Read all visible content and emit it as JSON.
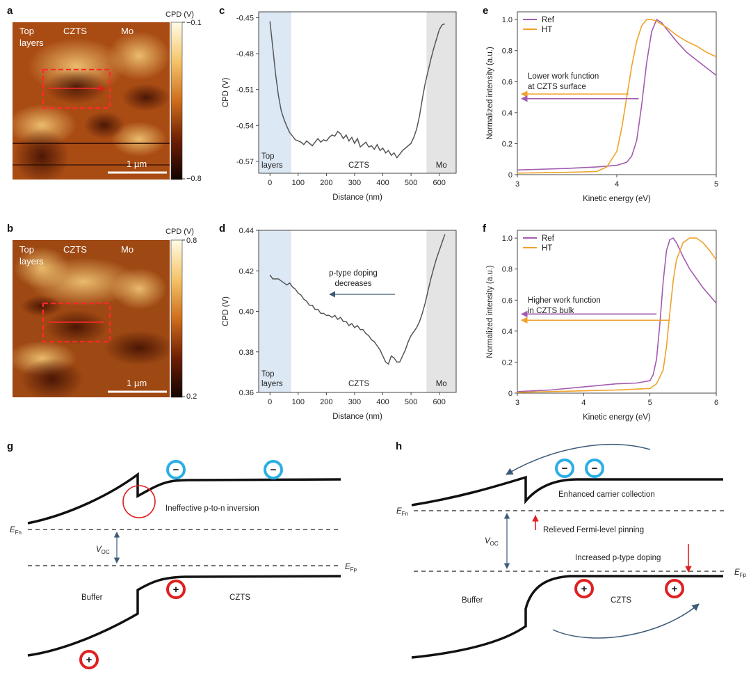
{
  "colors": {
    "ref": "#a25bb0",
    "ht": "#f0a22a",
    "top_shade": "#dce8f4",
    "mo_shade": "#e4e4e4",
    "red": "#e02020",
    "blue": "#2aaee6",
    "navy": "#3c5a78"
  },
  "panels": {
    "a": {
      "letter": "a",
      "labels": {
        "top": "Top",
        "layers": "layers",
        "czts": "CZTS",
        "mo": "Mo",
        "scale": "1 µm"
      },
      "colorbar": {
        "title": "CPD (V)",
        "max": "−0.1",
        "min": "−0.8"
      }
    },
    "b": {
      "letter": "b",
      "labels": {
        "top": "Top",
        "layers": "layers",
        "czts": "CZTS",
        "mo": "Mo",
        "scale": "1 µm"
      },
      "colorbar": {
        "title": "CPD (V)",
        "max": "0.8",
        "min": "0.2"
      }
    },
    "g": {
      "letter": "g",
      "efn_E": "E",
      "efn_sub": "Fn",
      "efp_E": "E",
      "efp_sub": "Fp",
      "voc_V": "V",
      "voc_sub": "OC",
      "buffer": "Buffer",
      "czts": "CZTS",
      "annotation": "Ineffective p-to-n inversion",
      "minus": "−",
      "plus": "+"
    },
    "h": {
      "letter": "h",
      "efn_E": "E",
      "efn_sub": "Fn",
      "efp_E": "E",
      "efp_sub": "Fp",
      "voc_V": "V",
      "voc_sub": "OC",
      "buffer": "Buffer",
      "czts": "CZTS",
      "ann1": "Enhanced carrier collection",
      "ann2": "Relieved Fermi-level pinning",
      "ann3": "Increased p-type doping",
      "minus": "−",
      "plus": "+"
    }
  },
  "chart_data": [
    {
      "panel": "c",
      "type": "line",
      "title": "",
      "xlabel": "Distance (nm)",
      "ylabel": "CPD (V)",
      "xlim": [
        -40,
        660
      ],
      "ylim": [
        -0.58,
        -0.445
      ],
      "xticks": [
        0,
        100,
        200,
        300,
        400,
        500,
        600
      ],
      "yticks": [
        -0.45,
        -0.48,
        -0.51,
        -0.54,
        -0.57
      ],
      "ytick_labels": [
        "-0.45",
        "-0.48",
        "-0.51",
        "-0.54",
        "-0.57"
      ],
      "regions": [
        {
          "label": "Top",
          "label2": "layers",
          "x0": -40,
          "x1": 75,
          "kind": "top"
        },
        {
          "label": "CZTS",
          "label2": "",
          "x0": 75,
          "x1": 555,
          "kind": "none"
        },
        {
          "label": "Mo",
          "label2": "",
          "x0": 555,
          "x1": 660,
          "kind": "mo"
        }
      ],
      "x": [
        0,
        10,
        20,
        30,
        40,
        50,
        60,
        70,
        80,
        90,
        100,
        110,
        120,
        130,
        140,
        150,
        160,
        170,
        180,
        190,
        200,
        210,
        220,
        230,
        240,
        250,
        260,
        270,
        280,
        290,
        300,
        310,
        320,
        330,
        340,
        350,
        360,
        370,
        380,
        390,
        400,
        410,
        420,
        430,
        440,
        450,
        460,
        470,
        480,
        490,
        500,
        510,
        520,
        530,
        540,
        550,
        560,
        570,
        580,
        590,
        600,
        610,
        620
      ],
      "series": [
        {
          "name": "CPD",
          "values": [
            -0.453,
            -0.475,
            -0.497,
            -0.515,
            -0.528,
            -0.535,
            -0.541,
            -0.546,
            -0.549,
            -0.552,
            -0.553,
            -0.554,
            -0.556,
            -0.553,
            -0.555,
            -0.557,
            -0.554,
            -0.551,
            -0.554,
            -0.552,
            -0.553,
            -0.55,
            -0.548,
            -0.549,
            -0.545,
            -0.547,
            -0.551,
            -0.548,
            -0.553,
            -0.55,
            -0.555,
            -0.551,
            -0.558,
            -0.556,
            -0.554,
            -0.558,
            -0.557,
            -0.56,
            -0.556,
            -0.561,
            -0.559,
            -0.563,
            -0.561,
            -0.565,
            -0.563,
            -0.567,
            -0.564,
            -0.561,
            -0.559,
            -0.557,
            -0.555,
            -0.55,
            -0.543,
            -0.532,
            -0.518,
            -0.505,
            -0.495,
            -0.485,
            -0.476,
            -0.468,
            -0.46,
            -0.456,
            -0.455
          ]
        }
      ]
    },
    {
      "panel": "d",
      "type": "line",
      "title": "",
      "xlabel": "Distance (nm)",
      "ylabel": "CPD (V)",
      "xlim": [
        -40,
        660
      ],
      "ylim": [
        0.36,
        0.44
      ],
      "xticks": [
        0,
        100,
        200,
        300,
        400,
        500,
        600
      ],
      "yticks": [
        0.36,
        0.38,
        0.4,
        0.42,
        0.44
      ],
      "ytick_labels": [
        "0.36",
        "0.38",
        "0.40",
        "0.42",
        "0.44"
      ],
      "regions": [
        {
          "label": "Top",
          "label2": "layers",
          "x0": -40,
          "x1": 75,
          "kind": "top"
        },
        {
          "label": "CZTS",
          "label2": "",
          "x0": 75,
          "x1": 555,
          "kind": "none"
        },
        {
          "label": "Mo",
          "label2": "",
          "x0": 555,
          "x1": 660,
          "kind": "mo"
        }
      ],
      "annotation": {
        "line1": "p-type doping",
        "line2": "decreases"
      },
      "x": [
        0,
        10,
        20,
        30,
        40,
        50,
        60,
        70,
        80,
        90,
        100,
        110,
        120,
        130,
        140,
        150,
        160,
        170,
        180,
        190,
        200,
        210,
        220,
        230,
        240,
        250,
        260,
        270,
        280,
        290,
        300,
        310,
        320,
        330,
        340,
        350,
        360,
        370,
        380,
        390,
        400,
        410,
        420,
        430,
        440,
        450,
        460,
        470,
        480,
        490,
        500,
        510,
        520,
        530,
        540,
        550,
        560,
        570,
        580,
        590,
        600,
        610,
        620
      ],
      "series": [
        {
          "name": "CPD",
          "values": [
            0.418,
            0.416,
            0.416,
            0.416,
            0.415,
            0.414,
            0.413,
            0.414,
            0.412,
            0.411,
            0.409,
            0.408,
            0.406,
            0.405,
            0.403,
            0.403,
            0.401,
            0.401,
            0.399,
            0.399,
            0.398,
            0.398,
            0.397,
            0.398,
            0.396,
            0.397,
            0.395,
            0.395,
            0.393,
            0.394,
            0.392,
            0.393,
            0.391,
            0.391,
            0.389,
            0.388,
            0.386,
            0.385,
            0.383,
            0.381,
            0.378,
            0.375,
            0.374,
            0.378,
            0.377,
            0.375,
            0.375,
            0.378,
            0.381,
            0.385,
            0.388,
            0.39,
            0.392,
            0.395,
            0.399,
            0.404,
            0.41,
            0.416,
            0.421,
            0.426,
            0.43,
            0.434,
            0.438
          ]
        }
      ]
    },
    {
      "panel": "e",
      "type": "line",
      "title": "",
      "xlabel": "Kinetic energy (eV)",
      "ylabel": "Normalized intensity (a.u.)",
      "xlim": [
        3,
        5
      ],
      "ylim": [
        0,
        1.05
      ],
      "xticks": [
        3,
        4,
        5
      ],
      "yticks": [
        0,
        0.2,
        0.4,
        0.6,
        0.8,
        1.0
      ],
      "ytick_labels": [
        "0",
        "0.2",
        "0.4",
        "0.6",
        "0.8",
        "1.0"
      ],
      "legend": "top-left",
      "annotation": {
        "line1": "Lower work function",
        "line2": "at CZTS surface",
        "arrow_ht_from": 4.12,
        "arrow_ref_from": 4.22,
        "arrow_ht_y": 0.52,
        "arrow_ref_y": 0.49
      },
      "series": [
        {
          "name": "Ref",
          "color_key": "ref",
          "x": [
            3.0,
            3.5,
            3.8,
            4.0,
            4.1,
            4.15,
            4.2,
            4.25,
            4.3,
            4.35,
            4.4,
            4.45,
            4.5,
            4.6,
            4.7,
            4.8,
            4.9,
            5.0
          ],
          "values": [
            0.03,
            0.04,
            0.05,
            0.06,
            0.08,
            0.12,
            0.22,
            0.45,
            0.72,
            0.92,
            1.0,
            0.98,
            0.94,
            0.86,
            0.79,
            0.74,
            0.69,
            0.64
          ]
        },
        {
          "name": "HT",
          "color_key": "ht",
          "x": [
            3.0,
            3.5,
            3.8,
            3.9,
            4.0,
            4.05,
            4.1,
            4.15,
            4.2,
            4.25,
            4.3,
            4.35,
            4.4,
            4.5,
            4.6,
            4.7,
            4.8,
            4.9,
            5.0
          ],
          "values": [
            0.01,
            0.015,
            0.02,
            0.05,
            0.15,
            0.3,
            0.5,
            0.7,
            0.86,
            0.96,
            1.0,
            1.0,
            0.99,
            0.95,
            0.9,
            0.86,
            0.83,
            0.79,
            0.76
          ]
        }
      ]
    },
    {
      "panel": "f",
      "type": "line",
      "title": "",
      "xlabel": "Kinetic energy (eV)",
      "ylabel": "Normalized intensity (a.u.)",
      "xlim": [
        3,
        6
      ],
      "ylim": [
        0,
        1.05
      ],
      "xticks": [
        3,
        4,
        5,
        6
      ],
      "yticks": [
        0,
        0.2,
        0.4,
        0.6,
        0.8,
        1.0
      ],
      "ytick_labels": [
        "0",
        "0.2",
        "0.4",
        "0.6",
        "0.8",
        "1.0"
      ],
      "legend": "top-left",
      "annotation": {
        "line1": "Higher work function",
        "line2": "in CZTS bulk",
        "arrow_ref_from": 5.1,
        "arrow_ht_from": 5.3,
        "arrow_ref_y": 0.51,
        "arrow_ht_y": 0.47
      },
      "series": [
        {
          "name": "Ref",
          "color_key": "ref",
          "x": [
            3.0,
            3.5,
            4.0,
            4.5,
            4.8,
            5.0,
            5.05,
            5.1,
            5.15,
            5.2,
            5.25,
            5.3,
            5.35,
            5.4,
            5.5,
            5.6,
            5.7,
            5.8,
            5.9,
            6.0
          ],
          "values": [
            0.01,
            0.02,
            0.04,
            0.06,
            0.065,
            0.08,
            0.12,
            0.22,
            0.45,
            0.72,
            0.92,
            0.99,
            1.0,
            0.97,
            0.88,
            0.8,
            0.74,
            0.68,
            0.63,
            0.58
          ]
        },
        {
          "name": "HT",
          "color_key": "ht",
          "x": [
            3.0,
            3.5,
            4.0,
            4.5,
            5.0,
            5.1,
            5.2,
            5.25,
            5.3,
            5.35,
            5.4,
            5.5,
            5.6,
            5.7,
            5.8,
            5.9,
            6.0
          ],
          "values": [
            0.005,
            0.01,
            0.015,
            0.02,
            0.03,
            0.06,
            0.15,
            0.3,
            0.52,
            0.72,
            0.86,
            0.97,
            1.0,
            1.0,
            0.97,
            0.92,
            0.86
          ]
        }
      ]
    }
  ]
}
